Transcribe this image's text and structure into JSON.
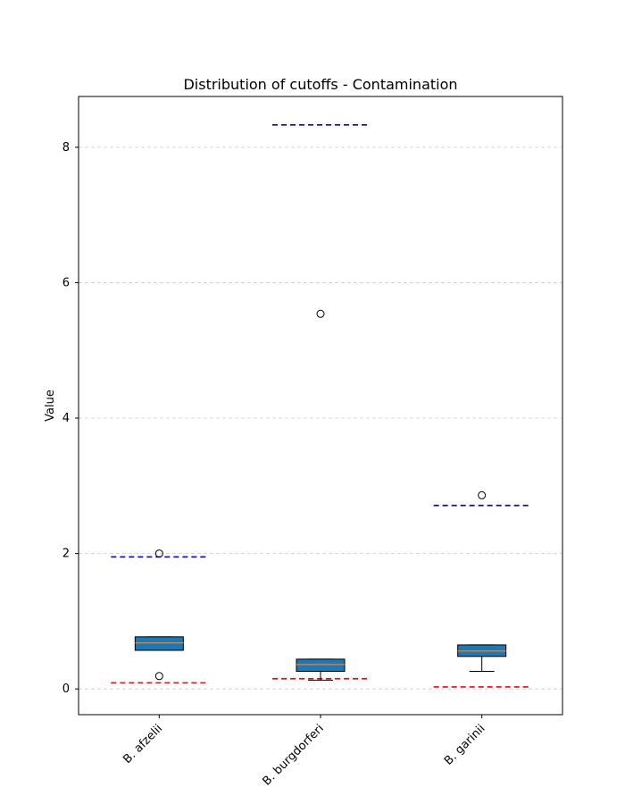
{
  "chart_data": {
    "type": "box",
    "title": "Distribution of cutoffs - Contamination",
    "xlabel": "",
    "ylabel": "Value",
    "ylim": [
      -0.38,
      8.75
    ],
    "yticks": [
      0,
      2,
      4,
      6,
      8
    ],
    "grid": "y-dashed",
    "categories": [
      "B. afzelii",
      "B. burgdorferi",
      "B. garinii"
    ],
    "boxes": [
      {
        "whisker_low": 0.57,
        "q1": 0.57,
        "median": 0.68,
        "q3": 0.77,
        "whisker_high": 0.77,
        "outliers": [
          2.0,
          0.19
        ]
      },
      {
        "whisker_low": 0.13,
        "q1": 0.26,
        "median": 0.36,
        "q3": 0.44,
        "whisker_high": 0.44,
        "outliers": [
          5.54
        ]
      },
      {
        "whisker_low": 0.26,
        "q1": 0.48,
        "median": 0.56,
        "q3": 0.65,
        "whisker_high": 0.65,
        "outliers": [
          2.86
        ]
      }
    ],
    "reference_lines": {
      "upper": {
        "color": "#0000cc",
        "values": [
          1.95,
          8.33,
          2.71
        ]
      },
      "lower": {
        "color": "#ff0000",
        "values": [
          0.09,
          0.15,
          0.03
        ]
      }
    },
    "box_fill": "#1f77b4",
    "median_color": "#ff7f0e"
  }
}
